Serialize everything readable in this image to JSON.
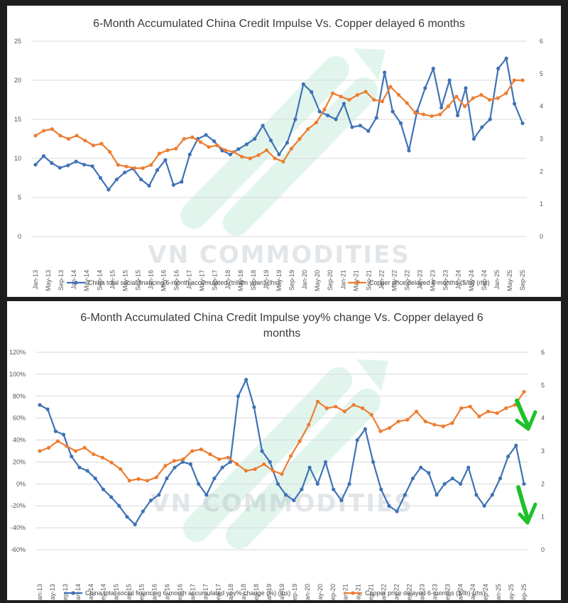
{
  "watermark": "VN COMMODITIES",
  "colors": {
    "blue": "#3f72b5",
    "orange": "#ed7d31",
    "grid": "#d9d9d9",
    "arrow": "#1fc12a",
    "watermark": "#56c99a"
  },
  "chart_data": [
    {
      "type": "line",
      "title": "6-Month Accumulated China Credit Impulse Vs. Copper delayed 6 months",
      "x_labels": [
        "Jan-13",
        "May-13",
        "Sep-13",
        "Jan-14",
        "May-14",
        "Sep-14",
        "Jan-15",
        "May-15",
        "Sep-15",
        "Jan-16",
        "May-16",
        "Sep-16",
        "Jan-17",
        "May-17",
        "Sep-17",
        "Jan-18",
        "May-18",
        "Sep-18",
        "Jan-19",
        "May-19",
        "Sep-19",
        "Jan-20",
        "May-20",
        "Sep-20",
        "Jan-21",
        "May-21",
        "Sep-21",
        "Jan-22",
        "May-22",
        "Sep-22",
        "Jan-23",
        "May-23",
        "Sep-23",
        "Jan-24",
        "May-24",
        "Sep-24",
        "Jan-25",
        "May-25",
        "Sep-25"
      ],
      "left_axis": {
        "ticks": [
          "25",
          "20",
          "15",
          "10",
          "5",
          "0"
        ],
        "min": 0,
        "max": 25
      },
      "right_axis": {
        "ticks": [
          "6",
          "5",
          "4",
          "3",
          "2",
          "1",
          "0"
        ],
        "min": 0,
        "max": 6
      },
      "series": [
        {
          "name": "China total social financing 6-month accumulated (trillion yuan) (lhs)",
          "axis": "left",
          "values": [
            9.2,
            10.3,
            9.4,
            8.8,
            9.1,
            9.6,
            9.2,
            9.0,
            7.5,
            6.0,
            7.3,
            8.2,
            8.7,
            7.3,
            6.5,
            8.5,
            9.8,
            6.6,
            7.0,
            10.5,
            12.5,
            13.0,
            12.2,
            11.0,
            10.5,
            11.2,
            11.8,
            12.5,
            14.2,
            12.3,
            10.5,
            12.0,
            15.0,
            19.5,
            18.5,
            16.0,
            15.5,
            15.0,
            17.0,
            14.0,
            14.2,
            13.5,
            15.2,
            21.0,
            16.0,
            14.5,
            11.0,
            16.0,
            19.0,
            21.5,
            16.5,
            20.0,
            15.5,
            19.0,
            12.5,
            14.0,
            15.0,
            21.5,
            22.8,
            17.0,
            14.5
          ]
        },
        {
          "name": "Copper price delayed 6-months ($/lb) (rhs)",
          "axis": "right",
          "values": [
            3.1,
            3.25,
            3.3,
            3.1,
            3.0,
            3.1,
            2.95,
            2.8,
            2.85,
            2.6,
            2.2,
            2.15,
            2.1,
            2.1,
            2.2,
            2.55,
            2.65,
            2.7,
            3.0,
            3.05,
            2.9,
            2.75,
            2.8,
            2.65,
            2.6,
            2.45,
            2.4,
            2.5,
            2.65,
            2.4,
            2.3,
            2.7,
            3.0,
            3.3,
            3.5,
            3.9,
            4.4,
            4.3,
            4.2,
            4.35,
            4.45,
            4.2,
            4.15,
            4.6,
            4.35,
            4.1,
            3.8,
            3.75,
            3.7,
            3.75,
            4.0,
            4.3,
            4.0,
            4.25,
            4.35,
            4.2,
            4.25,
            4.4,
            4.8,
            4.8
          ]
        }
      ]
    },
    {
      "type": "line",
      "title": "6-Month Accumulated China Credit Impulse yoy% change Vs. Copper delayed 6 months",
      "x_labels": [
        "Jan-13",
        "May-13",
        "Sep-13",
        "Jan-14",
        "May-14",
        "Sep-14",
        "Jan-15",
        "May-15",
        "Sep-15",
        "Jan-16",
        "May-16",
        "Sep-16",
        "Jan-17",
        "May-17",
        "Sep-17",
        "Jan-18",
        "May-18",
        "Sep-18",
        "Jan-19",
        "May-19",
        "Sep-19",
        "Jan-20",
        "May-20",
        "Sep-20",
        "Jan-21",
        "May-21",
        "Sep-21",
        "Jan-22",
        "May-22",
        "Sep-22",
        "Jan-23",
        "May-23",
        "Sep-23",
        "Jan-24",
        "May-24",
        "Sep-24",
        "Jan-25",
        "May-25",
        "Sep-25"
      ],
      "left_axis": {
        "ticks": [
          "120%",
          "100%",
          "80%",
          "60%",
          "40%",
          "20%",
          "0%",
          "-20%",
          "-40%",
          "-60%"
        ],
        "min": -60,
        "max": 120
      },
      "right_axis": {
        "ticks": [
          "6",
          "5",
          "4",
          "3",
          "2",
          "1",
          "0"
        ],
        "min": 0,
        "max": 6
      },
      "series": [
        {
          "name": "China total social financing 6-month accumulated yoy% change (%) (lhs)",
          "axis": "left",
          "values": [
            72,
            68,
            48,
            45,
            25,
            15,
            12,
            5,
            -5,
            -12,
            -20,
            -30,
            -37,
            -25,
            -15,
            -10,
            5,
            15,
            20,
            18,
            0,
            -10,
            5,
            15,
            20,
            80,
            95,
            70,
            30,
            20,
            0,
            -10,
            -15,
            -5,
            15,
            0,
            20,
            -5,
            -15,
            0,
            40,
            50,
            20,
            -5,
            -20,
            -25,
            -10,
            5,
            15,
            10,
            -10,
            0,
            5,
            0,
            15,
            -10,
            -20,
            -10,
            5,
            25,
            35,
            0
          ]
        },
        {
          "name": "Copper price delayed 6-months ($/lb) (rhs)",
          "axis": "right",
          "values": [
            3.0,
            3.1,
            3.3,
            3.15,
            3.0,
            3.1,
            2.9,
            2.8,
            2.65,
            2.45,
            2.1,
            2.15,
            2.1,
            2.2,
            2.55,
            2.7,
            2.75,
            3.0,
            3.05,
            2.9,
            2.75,
            2.8,
            2.6,
            2.4,
            2.45,
            2.6,
            2.4,
            2.3,
            2.85,
            3.3,
            3.8,
            4.5,
            4.3,
            4.35,
            4.2,
            4.4,
            4.3,
            4.1,
            3.6,
            3.7,
            3.9,
            3.95,
            4.2,
            3.9,
            3.8,
            3.75,
            3.85,
            4.3,
            4.35,
            4.05,
            4.2,
            4.15,
            4.3,
            4.4,
            4.8
          ]
        }
      ]
    }
  ]
}
